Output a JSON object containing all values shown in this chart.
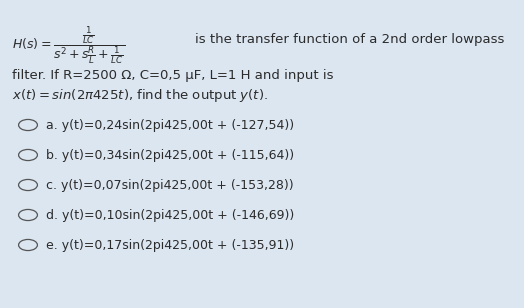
{
  "background_color": "#dce6f1",
  "line2": "filter. If R=2500 Ω, C=0,5 μF, L=1 H and input is",
  "options": [
    "a. y(t)=0,24sin(2pi425,00t + (-127,54))",
    "b. y(t)=0,34sin(2pi425,00t + (-115,64))",
    "c. y(t)=0,07sin(2pi425,00t + (-153,28))",
    "d. y(t)=0,10sin(2pi425,00t + (-146,69))",
    "e. y(t)=0,17sin(2pi425,00t + (-135,91))"
  ],
  "text_color": "#2b2b2b",
  "font_size_main": 9.5,
  "font_size_formula": 9.0,
  "font_size_options": 9.0,
  "circle_color": "#555555",
  "suffix_text": "is the transfer function of a 2nd order lowpass"
}
